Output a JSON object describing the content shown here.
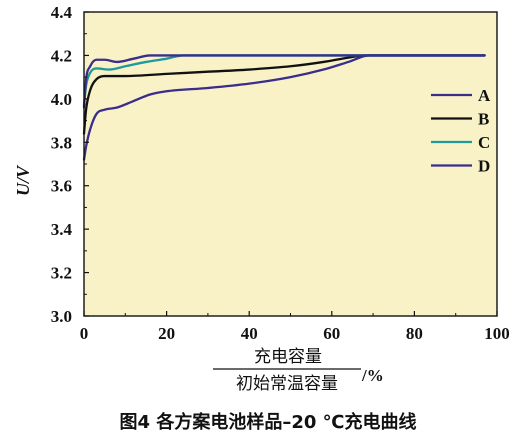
{
  "chart_data": {
    "type": "line",
    "title": "",
    "ylabel": "U/V",
    "xlabel_numerator": "充电容量",
    "xlabel_denominator": "初始常温容量",
    "xlabel_unit": "/%",
    "xlim": [
      0,
      100
    ],
    "ylim": [
      3.0,
      4.4
    ],
    "x_ticks": [
      "0",
      "20",
      "40",
      "60",
      "80",
      "100"
    ],
    "y_ticks": [
      "3.0",
      "3.2",
      "3.4",
      "3.6",
      "3.8",
      "4.0",
      "4.2",
      "4.4"
    ],
    "grid": false,
    "background": "#f8f2c6",
    "legend_position": "right-center",
    "series": [
      {
        "name": "A",
        "color": "#3a2d8c",
        "points": [
          [
            0,
            3.96
          ],
          [
            0.5,
            4.09
          ],
          [
            1.5,
            4.15
          ],
          [
            3,
            4.18
          ],
          [
            5,
            4.18
          ],
          [
            8,
            4.17
          ],
          [
            12,
            4.185
          ],
          [
            16,
            4.2
          ],
          [
            20,
            4.2
          ],
          [
            40,
            4.2
          ],
          [
            60,
            4.2
          ],
          [
            80,
            4.2
          ],
          [
            97,
            4.2
          ]
        ]
      },
      {
        "name": "B",
        "color": "#111111",
        "points": [
          [
            0,
            3.84
          ],
          [
            0.5,
            3.95
          ],
          [
            1.5,
            4.04
          ],
          [
            3,
            4.09
          ],
          [
            5,
            4.105
          ],
          [
            10,
            4.105
          ],
          [
            20,
            4.115
          ],
          [
            30,
            4.125
          ],
          [
            40,
            4.135
          ],
          [
            50,
            4.15
          ],
          [
            58,
            4.17
          ],
          [
            64,
            4.19
          ],
          [
            68,
            4.2
          ],
          [
            80,
            4.2
          ],
          [
            97,
            4.2
          ]
        ]
      },
      {
        "name": "C",
        "color": "#1f9a9a",
        "points": [
          [
            0,
            3.97
          ],
          [
            0.5,
            4.06
          ],
          [
            1.5,
            4.12
          ],
          [
            3,
            4.14
          ],
          [
            6,
            4.135
          ],
          [
            10,
            4.15
          ],
          [
            15,
            4.17
          ],
          [
            20,
            4.185
          ],
          [
            24,
            4.2
          ],
          [
            40,
            4.2
          ],
          [
            60,
            4.2
          ],
          [
            80,
            4.2
          ],
          [
            97,
            4.2
          ]
        ]
      },
      {
        "name": "D",
        "color": "#3a2d8c",
        "points": [
          [
            0,
            3.72
          ],
          [
            0.5,
            3.78
          ],
          [
            1.5,
            3.86
          ],
          [
            3,
            3.93
          ],
          [
            5,
            3.95
          ],
          [
            8,
            3.96
          ],
          [
            12,
            3.99
          ],
          [
            16,
            4.02
          ],
          [
            20,
            4.035
          ],
          [
            30,
            4.05
          ],
          [
            40,
            4.07
          ],
          [
            50,
            4.1
          ],
          [
            58,
            4.135
          ],
          [
            64,
            4.17
          ],
          [
            69,
            4.2
          ],
          [
            80,
            4.2
          ],
          [
            97,
            4.2
          ]
        ]
      }
    ]
  },
  "caption": "图4  各方案电池样品–20 ℃充电曲线"
}
